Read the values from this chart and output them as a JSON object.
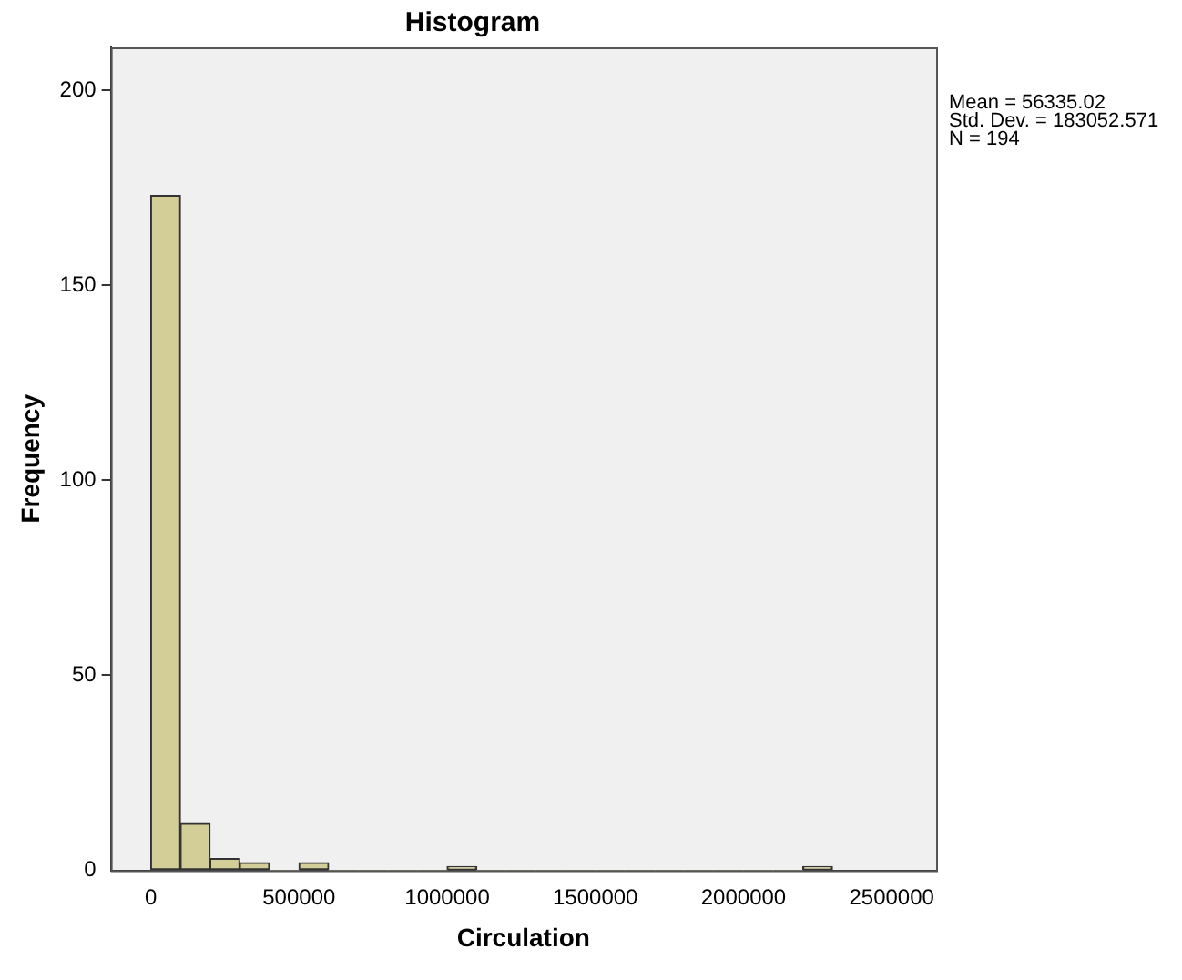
{
  "chart_data": {
    "type": "histogram",
    "title": "Histogram",
    "xlabel": "Circulation",
    "ylabel": "Frequency",
    "bins": [
      0,
      100000,
      200000,
      300000,
      400000,
      500000,
      600000,
      700000,
      800000,
      900000,
      1000000,
      1100000,
      1200000,
      1300000,
      1400000,
      1500000,
      1600000,
      1700000,
      1800000,
      1900000,
      2000000,
      2100000,
      2200000,
      2300000
    ],
    "values": [
      173,
      12,
      3,
      2,
      0,
      2,
      0,
      0,
      0,
      0,
      1,
      0,
      0,
      0,
      0,
      0,
      0,
      0,
      0,
      0,
      0,
      0,
      1
    ],
    "color": "#d3ce97",
    "xlim": [
      -135000,
      2650000
    ],
    "xticks": [
      0,
      500000,
      1000000,
      1500000,
      2000000,
      2500000
    ],
    "ylim": [
      0,
      211
    ],
    "yticks": [
      0,
      50,
      100,
      150,
      200
    ],
    "grid": false,
    "legend": false,
    "annotations": [
      "Mean = 56335.02",
      "Std. Dev. = 183052.571",
      "N = 194"
    ]
  }
}
